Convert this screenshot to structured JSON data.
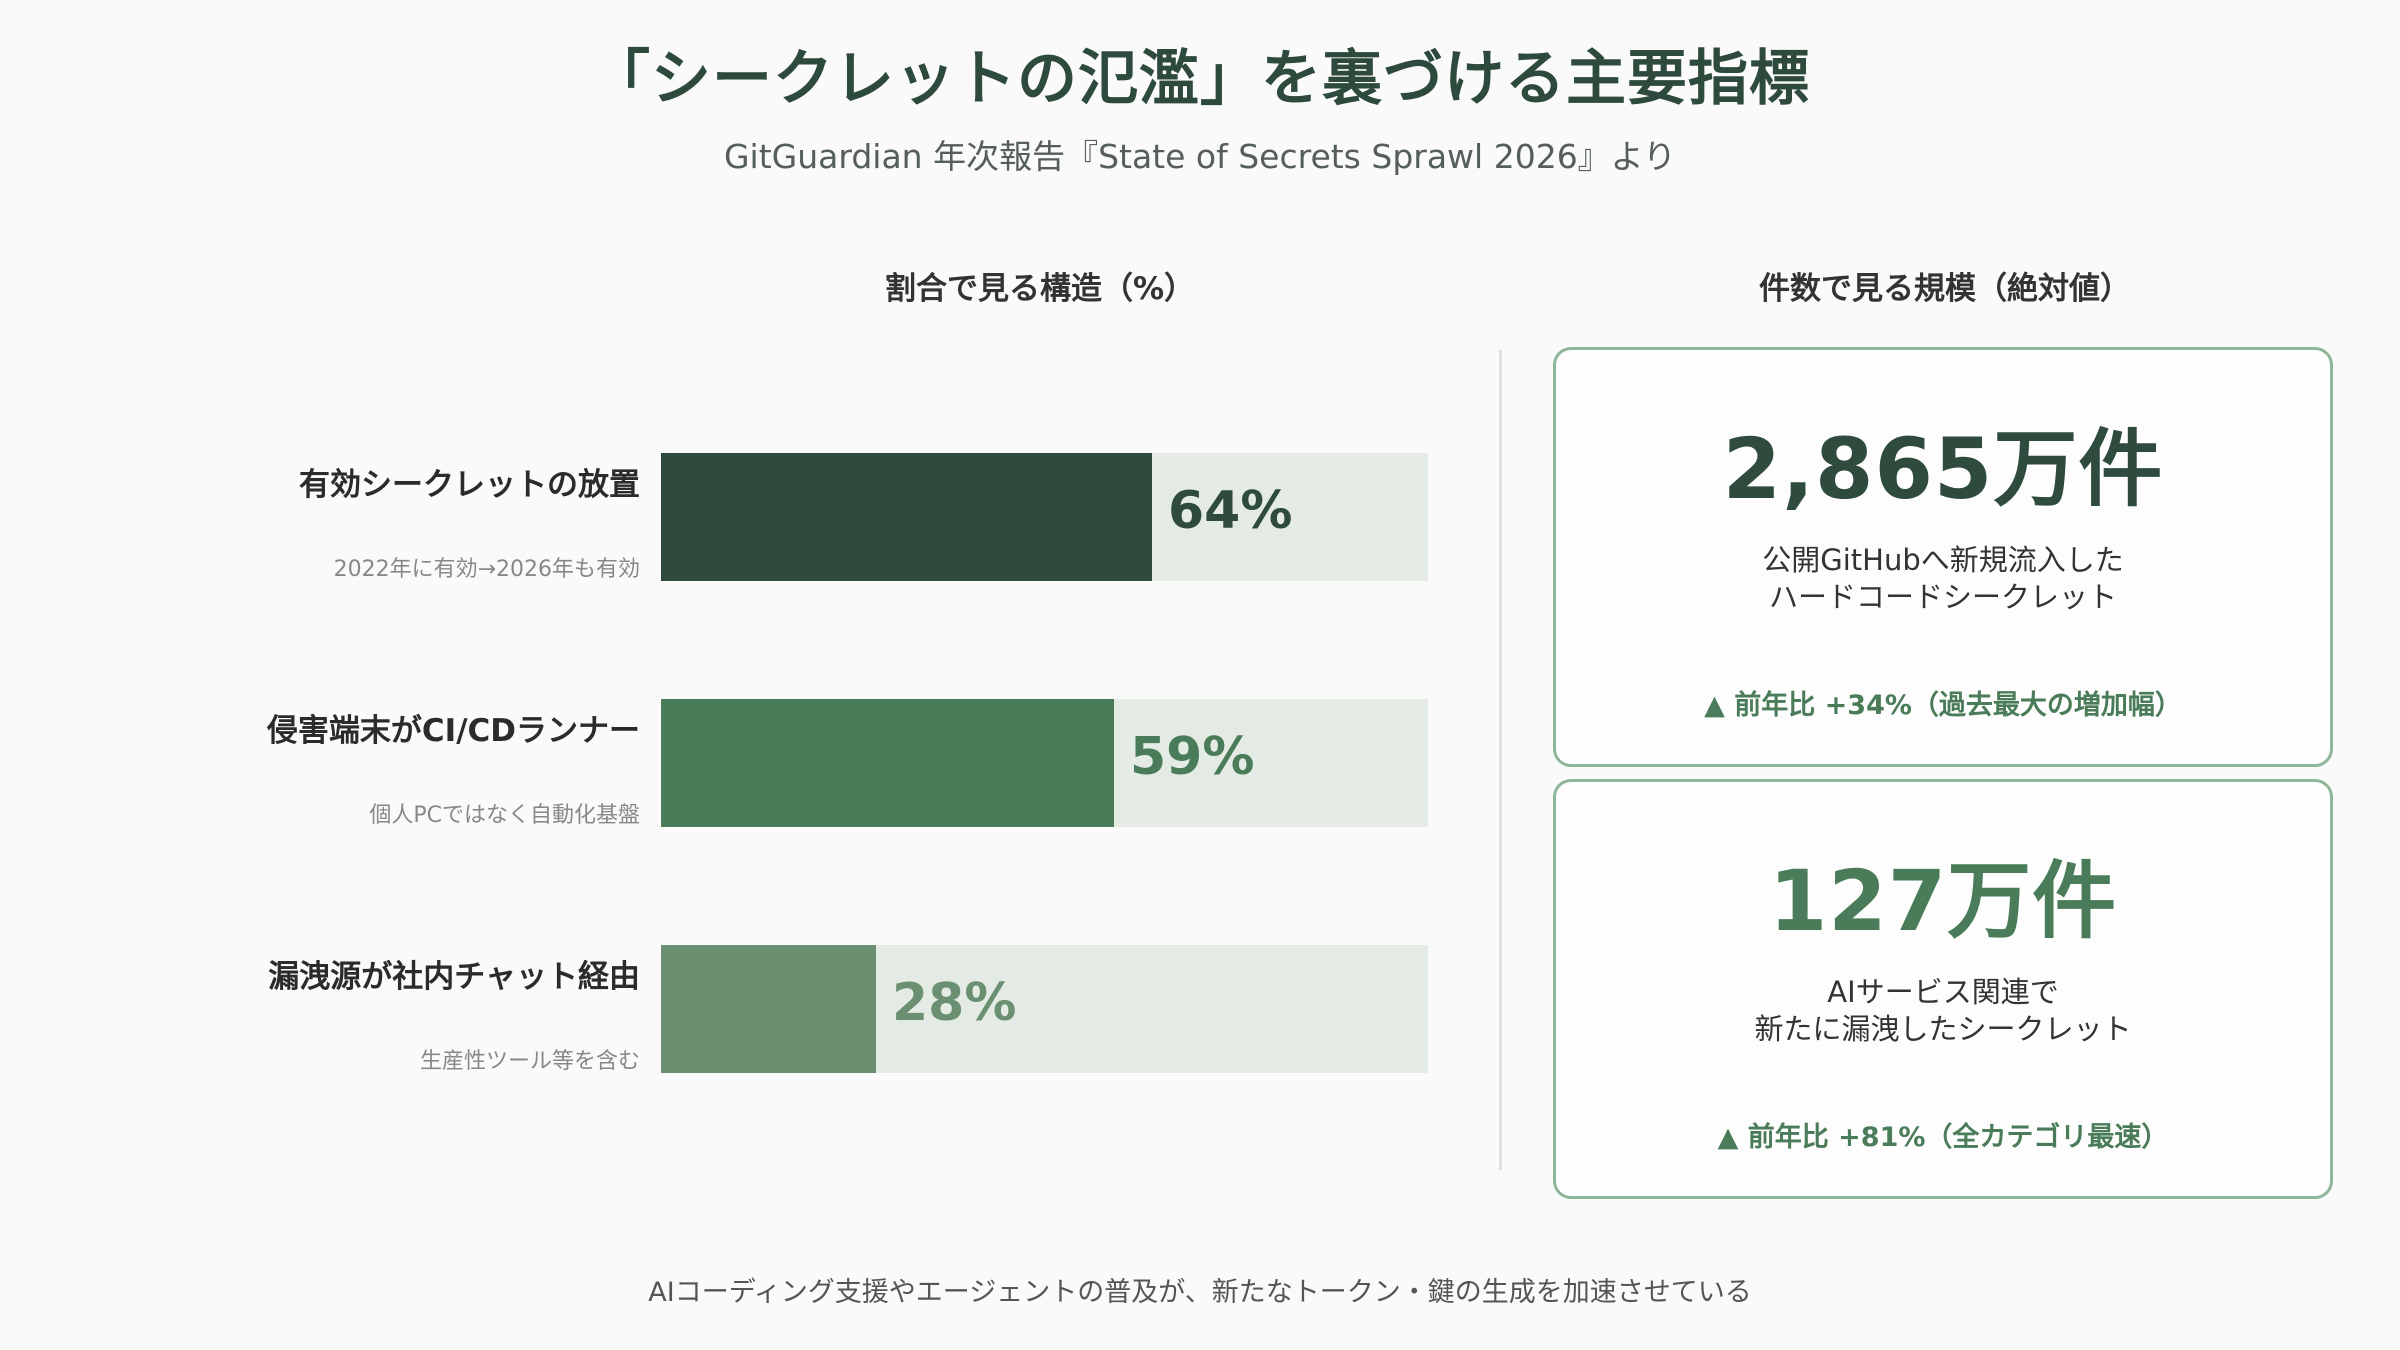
{
  "title": "「シークレットの氾濫」を裏づける主要指標",
  "subtitle": "GitGuardian 年次報告『State of Secrets Sprawl 2026』より",
  "left_header": "割合で見る構造（%）",
  "right_header": "件数で見る規模（絶対値）",
  "footer": "AIコーディング支援やエージェントの普及が、新たなトークン・鍵の生成を加速させている",
  "colors": {
    "dark": "#2f4b3e",
    "mid": "#4a7c59",
    "light": "#6b8f71",
    "track": "#e4ebe5",
    "accent": "#4a7c59"
  },
  "chart_data": {
    "type": "bar",
    "orientation": "horizontal",
    "xlim": [
      0,
      100
    ],
    "categories": [
      "有効シークレットの放置",
      "侵害端末がCI/CDランナー",
      "漏洩源が社内チャット経由"
    ],
    "sublabels": [
      "2022年に有効→2026年も有効",
      "個人PCではなく自動化基盤",
      "生産性ツール等を含む"
    ],
    "values": [
      64,
      59,
      28
    ],
    "value_labels": [
      "64%",
      "59%",
      "28%"
    ]
  },
  "cards": [
    {
      "value": "2,865万件",
      "desc_line1": "公開GitHubへ新規流入した",
      "desc_line2": "ハードコードシークレット",
      "change": "▲ 前年比 +34%（過去最大の増加幅）"
    },
    {
      "value": "127万件",
      "desc_line1": "AIサービス関連で",
      "desc_line2": "新たに漏洩したシークレット",
      "change": "▲ 前年比 +81%（全カテゴリ最速）"
    }
  ]
}
